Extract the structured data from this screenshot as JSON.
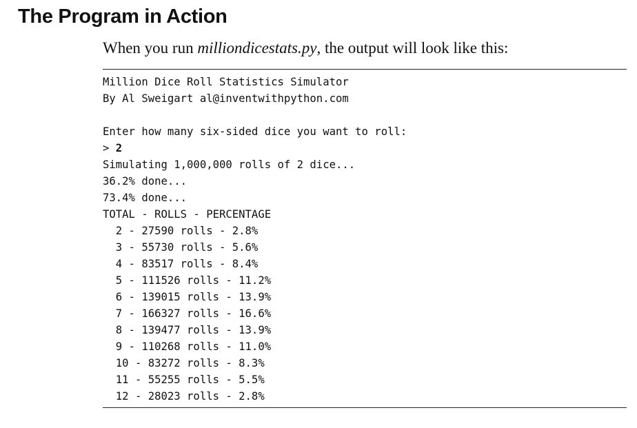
{
  "heading": "The Program in Action",
  "intro": {
    "before": "When you run ",
    "filename": "milliondicestats.py",
    "after": ", the output will look like this:"
  },
  "console": {
    "title_line": "Million Dice Roll Statistics Simulator",
    "author_line": "By Al Sweigart al@inventwithpython.com",
    "prompt_line": "Enter how many six-sided dice you want to roll:",
    "input_prompt": "> ",
    "input_value": "2",
    "simulating_line": "Simulating 1,000,000 rolls of 2 dice...",
    "progress": [
      "36.2% done...",
      "73.4% done..."
    ],
    "table_header": "TOTAL - ROLLS - PERCENTAGE",
    "results": [
      "  2 - 27590 rolls - 2.8%",
      "  3 - 55730 rolls - 5.6%",
      "  4 - 83517 rolls - 8.4%",
      "  5 - 111526 rolls - 11.2%",
      "  6 - 139015 rolls - 13.9%",
      "  7 - 166327 rolls - 16.6%",
      "  8 - 139477 rolls - 13.9%",
      "  9 - 110268 rolls - 11.0%",
      "  10 - 83272 rolls - 8.3%",
      "  11 - 55255 rolls - 5.5%",
      "  12 - 28023 rolls - 2.8%"
    ]
  }
}
